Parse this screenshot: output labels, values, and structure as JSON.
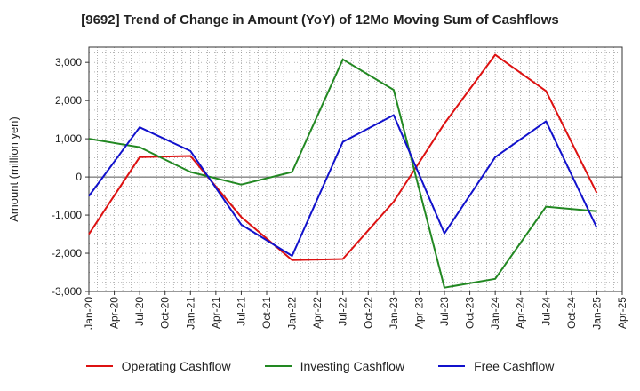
{
  "chart_data": {
    "type": "line",
    "title": "[9692]  Trend of Change in Amount (YoY) of 12Mo Moving Sum of Cashflows",
    "xlabel": "",
    "ylabel": "Amount (million yen)",
    "ylim": [
      -3000,
      3400
    ],
    "yticks": [
      3000,
      2000,
      1000,
      0,
      -1000,
      -2000,
      -3000
    ],
    "ytick_labels": [
      "3,000",
      "2,000",
      "1,000",
      "0",
      "-1,000",
      "-2,000",
      "-3,000"
    ],
    "x_tick_labels": [
      "Jan-20",
      "Apr-20",
      "Jul-20",
      "Oct-20",
      "Jan-21",
      "Apr-21",
      "Jul-21",
      "Oct-21",
      "Jan-22",
      "Apr-22",
      "Jul-22",
      "Oct-22",
      "Jan-23",
      "Apr-23",
      "Jul-23",
      "Oct-23",
      "Jan-24",
      "Apr-24",
      "Jul-24",
      "Oct-24",
      "Jan-25",
      "Apr-25"
    ],
    "x": [
      "Jan-20",
      "Jul-20",
      "Jan-21",
      "Jul-21",
      "Jan-22",
      "Jul-22",
      "Jan-23",
      "Jul-23",
      "Jan-24",
      "Jul-24",
      "Jan-25"
    ],
    "grid": true,
    "legend_position": "bottom",
    "series": [
      {
        "name": "Operating Cashflow",
        "color": "#dd1111",
        "values": [
          -1500,
          520,
          550,
          -1050,
          -2180,
          -2150,
          -650,
          1400,
          3200,
          2250,
          -420
        ]
      },
      {
        "name": "Investing Cashflow",
        "color": "#228822",
        "values": [
          1000,
          780,
          130,
          -200,
          130,
          3080,
          2280,
          -2900,
          -2670,
          -780,
          -900
        ]
      },
      {
        "name": "Free Cashflow",
        "color": "#1111cc",
        "values": [
          -500,
          1300,
          680,
          -1250,
          -2070,
          920,
          1620,
          -1480,
          520,
          1460,
          -1330
        ]
      }
    ]
  }
}
